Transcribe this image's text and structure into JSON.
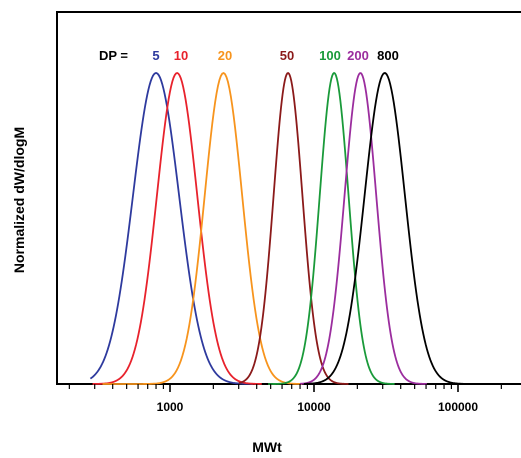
{
  "chart_data": {
    "type": "line",
    "title": "",
    "xlabel": "MWt",
    "ylabel": "Normalized dW/dlogM",
    "xscale": "log",
    "xlim": [
      200,
      300000
    ],
    "ylim": [
      0,
      1.0
    ],
    "x_ticks": [
      1000,
      10000,
      100000
    ],
    "x_tick_labels": [
      "1000",
      "10000",
      "100000"
    ],
    "grid": false,
    "legend": {
      "placement": "top",
      "prefix": "DP =",
      "prefix_color": "#000000"
    },
    "series": [
      {
        "name": "5",
        "color": "#2e3a9e",
        "peak_mw": 800,
        "log_sigma": 0.16,
        "start_mw": 280
      },
      {
        "name": "10",
        "color": "#e8222c",
        "peak_mw": 1120,
        "log_sigma": 0.14,
        "start_mw": 290
      },
      {
        "name": "20",
        "color": "#f7941d",
        "peak_mw": 2350,
        "log_sigma": 0.13,
        "start_mw": 340
      },
      {
        "name": "50",
        "color": "#8b1a1a",
        "peak_mw": 6600,
        "log_sigma": 0.1,
        "start_mw": 3000
      },
      {
        "name": "100",
        "color": "#1a9a3a",
        "peak_mw": 13800,
        "log_sigma": 0.1,
        "start_mw": 4800
      },
      {
        "name": "200",
        "color": "#9b2d9e",
        "peak_mw": 21000,
        "log_sigma": 0.11,
        "start_mw": 8000
      },
      {
        "name": "800",
        "color": "#000000",
        "peak_mw": 31000,
        "log_sigma": 0.14,
        "start_mw": 8500
      }
    ],
    "peak_value": 1.0
  }
}
